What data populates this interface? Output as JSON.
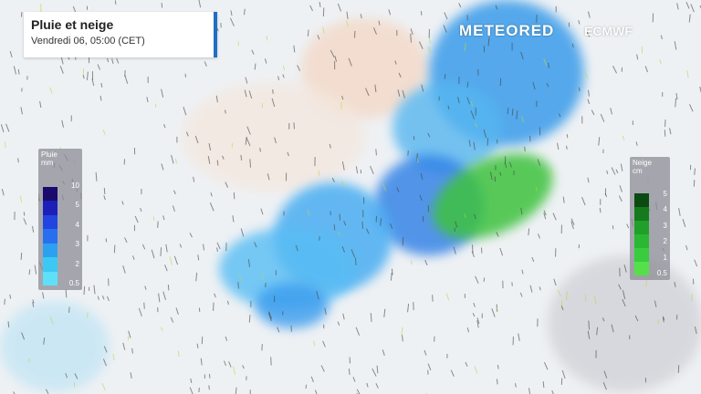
{
  "header": {
    "title": "Pluie et neige",
    "subtitle": "Vendredi 06, 05:00 (CET)",
    "accent": "#1e6fc4"
  },
  "branding": {
    "logo": "METEORED",
    "partner": "ECMWF"
  },
  "legend_rain": {
    "title": "Pluie",
    "unit": "mm",
    "ticks": [
      "10",
      "5",
      "4",
      "3",
      "2",
      "0.5"
    ],
    "colors": [
      "#1a0a6e",
      "#1b1fb8",
      "#2244e0",
      "#2a6ef0",
      "#2ea0f0",
      "#3cc8f4",
      "#5ee0fa"
    ]
  },
  "legend_snow": {
    "title": "Neige",
    "unit": "cm",
    "ticks": [
      "5",
      "4",
      "3",
      "2",
      "1",
      "0.5"
    ],
    "colors": [
      "#0b4a12",
      "#157a1c",
      "#1fa02a",
      "#2ab834",
      "#38cc3e",
      "#55e04a"
    ]
  }
}
